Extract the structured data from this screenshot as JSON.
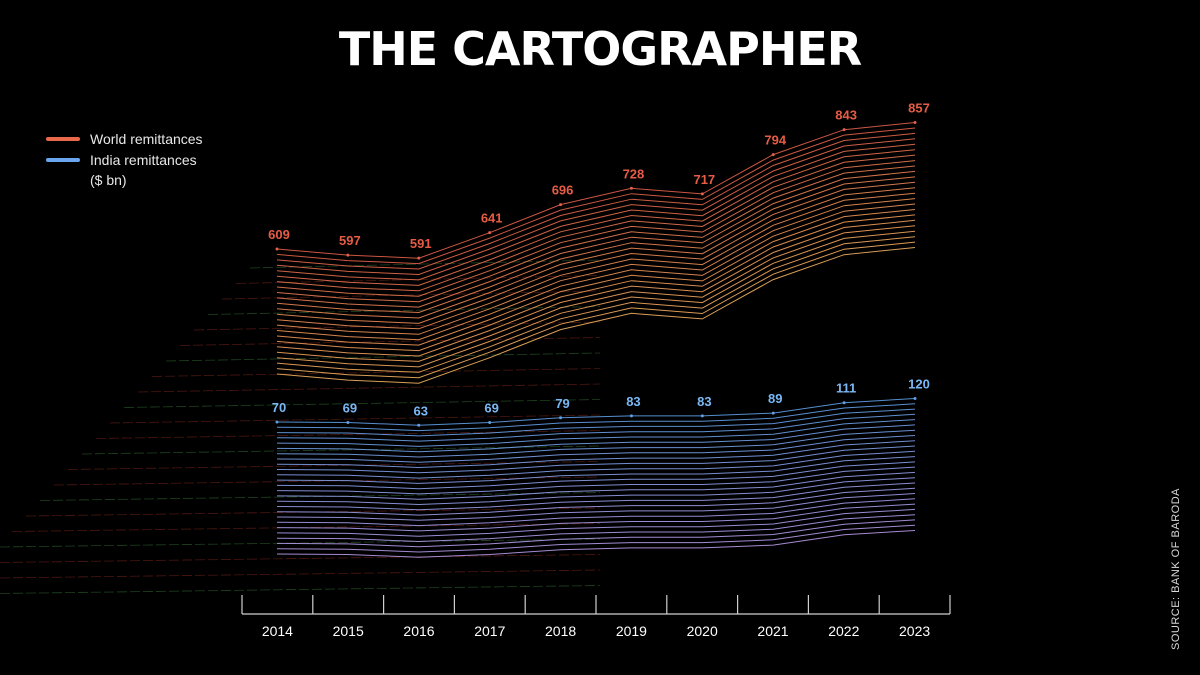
{
  "title": "THE CARTOGRAPHER",
  "source": "SOURCE: BANK OF BARODA",
  "legend": {
    "world": "World remittances",
    "india": "India remittances",
    "unit": "($ bn)"
  },
  "colors": {
    "world": "#e86a4a",
    "india": "#6aa6f0",
    "world_label": "#e65c45",
    "india_label": "#7ab8f5",
    "axis": "#cfcfcf"
  },
  "chart_data": {
    "type": "line",
    "categories": [
      "2014",
      "2015",
      "2016",
      "2017",
      "2018",
      "2019",
      "2020",
      "2021",
      "2022",
      "2023"
    ],
    "series": [
      {
        "name": "World remittances",
        "values": [
          609,
          597,
          591,
          641,
          696,
          728,
          717,
          794,
          843,
          857
        ]
      },
      {
        "name": "India remittances",
        "values": [
          70,
          69,
          63,
          69,
          79,
          83,
          83,
          89,
          111,
          120
        ]
      }
    ],
    "value_labels": {
      "world": [
        "609",
        "597",
        "591",
        "641",
        "696",
        "728",
        "717",
        "794",
        "843",
        "857"
      ],
      "india": [
        "70",
        "69",
        "63",
        "69",
        "79",
        "83",
        "83",
        "89",
        "111",
        "120"
      ]
    },
    "unit": "($ bn)",
    "legend_position": "top-left",
    "grid": false
  }
}
